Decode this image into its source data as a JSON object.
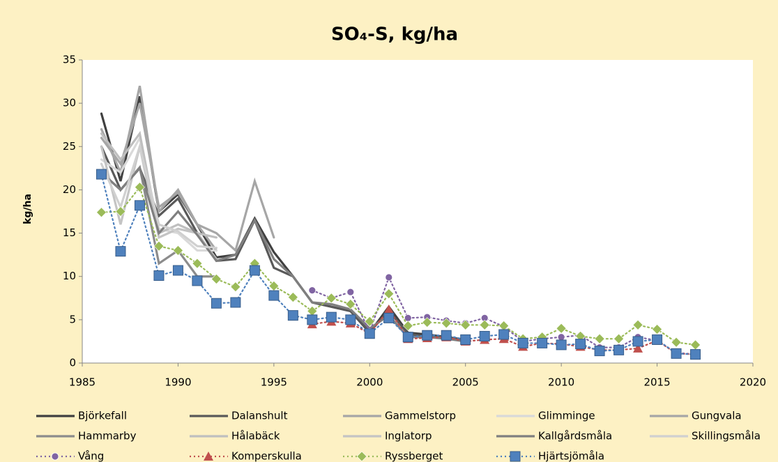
{
  "chart_data": {
    "type": "line",
    "title": "SO₄-S, kg/ha",
    "y_label": "kg/ha",
    "x": [
      1986,
      1987,
      1988,
      1989,
      1990,
      1991,
      1992,
      1993,
      1994,
      1995,
      1996,
      1997,
      1998,
      1999,
      2000,
      2001,
      2002,
      2003,
      2004,
      2005,
      2006,
      2007,
      2008,
      2009,
      2010,
      2011,
      2012,
      2013,
      2014,
      2015,
      2016,
      2017
    ],
    "xlim": [
      1985,
      2020
    ],
    "xticks": [
      1985,
      1990,
      1995,
      2000,
      2005,
      2010,
      2015,
      2020
    ],
    "ylim": [
      0,
      35
    ],
    "yticks": [
      0,
      5,
      10,
      15,
      20,
      25,
      30,
      35
    ],
    "series": [
      {
        "name": "Björkefall",
        "color": "#404040",
        "line_style": "solid",
        "values": [
          28.8,
          21,
          30.8,
          17.5,
          19.5,
          16,
          12.2,
          12.5,
          16.7,
          12.8,
          10,
          7,
          6.5,
          6,
          3.5,
          6.5,
          3.5,
          3.3,
          3,
          2.7,
          null,
          null,
          null,
          null,
          null,
          null,
          null,
          null,
          null,
          null,
          null,
          null
        ]
      },
      {
        "name": "Dalanshult",
        "color": "#595959",
        "line_style": "solid",
        "values": [
          25,
          20,
          22.5,
          17,
          19,
          15,
          11.8,
          12,
          16.5,
          11,
          10,
          7,
          6.5,
          6,
          3.6,
          6,
          3.4,
          3,
          3,
          2.6,
          null,
          null,
          null,
          null,
          null,
          null,
          null,
          null,
          null,
          null,
          null,
          null
        ]
      },
      {
        "name": "Gammelstorp",
        "color": "#a6a6a6",
        "line_style": "solid",
        "values": [
          27,
          22,
          32,
          17.5,
          20,
          16,
          13,
          null,
          null,
          null,
          null,
          null,
          null,
          null,
          null,
          null,
          null,
          null,
          null,
          null,
          null,
          null,
          null,
          null,
          null,
          null,
          null,
          null,
          null,
          null,
          null,
          null
        ]
      },
      {
        "name": "Glimminge",
        "color": "#d9d9d9",
        "line_style": "solid",
        "values": [
          23.5,
          22,
          26,
          15.5,
          15,
          13,
          13,
          null,
          null,
          null,
          null,
          null,
          null,
          null,
          null,
          null,
          null,
          null,
          null,
          null,
          null,
          null,
          null,
          null,
          null,
          null,
          null,
          null,
          null,
          null,
          null,
          null
        ]
      },
      {
        "name": "Gungvala",
        "color": "#a6a6a6",
        "line_style": "solid",
        "values": [
          26,
          23,
          30,
          18,
          19.7,
          16,
          15,
          13,
          21,
          14.5,
          null,
          null,
          null,
          null,
          null,
          null,
          null,
          null,
          null,
          null,
          null,
          null,
          null,
          null,
          null,
          null,
          null,
          null,
          null,
          null,
          null,
          null
        ]
      },
      {
        "name": "Hammarby",
        "color": "#8c8c8c",
        "line_style": "solid",
        "values": [
          22,
          20,
          22.6,
          11.5,
          13,
          10,
          10,
          null,
          null,
          null,
          null,
          null,
          null,
          null,
          null,
          null,
          null,
          null,
          null,
          null,
          null,
          null,
          null,
          null,
          null,
          null,
          null,
          null,
          null,
          null,
          null,
          null
        ]
      },
      {
        "name": "Hålabäck",
        "color": "#bfbfbf",
        "line_style": "solid",
        "values": [
          26.5,
          23.5,
          26.5,
          15,
          16,
          15,
          14.5,
          null,
          null,
          null,
          null,
          null,
          null,
          null,
          null,
          null,
          null,
          null,
          null,
          null,
          null,
          null,
          null,
          null,
          null,
          null,
          null,
          null,
          null,
          null,
          null,
          null
        ]
      },
      {
        "name": "Inglatorp",
        "color": "#c4c4c4",
        "line_style": "solid",
        "values": [
          25,
          16,
          25,
          14.5,
          15.5,
          15,
          12,
          null,
          null,
          null,
          null,
          null,
          null,
          null,
          null,
          null,
          null,
          null,
          null,
          null,
          null,
          null,
          null,
          null,
          null,
          null,
          null,
          null,
          null,
          null,
          null,
          null
        ]
      },
      {
        "name": "Kallgårdsmåla",
        "color": "#7f7f7f",
        "line_style": "solid",
        "values": [
          22,
          20,
          22.5,
          15,
          17.5,
          14.8,
          11.8,
          12.5,
          16.5,
          12,
          10,
          7,
          6.8,
          6.2,
          4,
          5.5,
          3,
          3,
          2.8,
          2.5,
          null,
          null,
          null,
          null,
          null,
          null,
          null,
          null,
          null,
          null,
          null,
          null
        ]
      },
      {
        "name": "Skillingsmåla",
        "color": "#d0d0d0",
        "line_style": "solid",
        "values": [
          23,
          18,
          25,
          16,
          15.2,
          13.5,
          13.3,
          null,
          null,
          null,
          null,
          null,
          null,
          null,
          null,
          null,
          null,
          null,
          null,
          null,
          null,
          null,
          null,
          null,
          null,
          null,
          null,
          null,
          null,
          null,
          null,
          null
        ]
      },
      {
        "name": "Vång",
        "color": "#8064a2",
        "line_style": "dotted",
        "marker": "circle",
        "values": [
          null,
          null,
          null,
          null,
          null,
          null,
          null,
          null,
          null,
          null,
          null,
          8.4,
          7.5,
          8.2,
          3.6,
          9.9,
          5.2,
          5.3,
          4.9,
          4.6,
          5.2,
          4.2,
          2.5,
          2.8,
          3.0,
          3.2,
          1.8,
          1.8,
          3.0,
          2.6,
          1.2,
          1.0
        ]
      },
      {
        "name": "Komperskulla",
        "color": "#c0504d",
        "line_style": "dotted",
        "marker": "triangle",
        "values": [
          null,
          null,
          null,
          null,
          null,
          null,
          null,
          null,
          null,
          null,
          null,
          4.5,
          4.8,
          4.6,
          3.4,
          6.2,
          2.8,
          2.9,
          3.0,
          2.5,
          2.7,
          2.8,
          1.9,
          2.3,
          2.2,
          1.9,
          1.5,
          1.5,
          1.7,
          2.6,
          1.1,
          1.0
        ]
      },
      {
        "name": "Ryssberget",
        "color": "#9bbb59",
        "line_style": "dotted",
        "marker": "diamond",
        "values": [
          17.4,
          17.5,
          20.3,
          13.5,
          13.0,
          11.5,
          9.7,
          8.8,
          11.5,
          8.9,
          7.6,
          6.0,
          7.5,
          6.8,
          4.8,
          8.0,
          4.3,
          4.7,
          4.6,
          4.4,
          4.4,
          4.3,
          2.8,
          3.0,
          4.0,
          3.1,
          2.8,
          2.8,
          4.4,
          3.9,
          2.4,
          2.1
        ]
      },
      {
        "name": "Hjärtsjömåla",
        "color": "#4f81bd",
        "line_style": "dotted",
        "marker": "square",
        "values": [
          21.8,
          12.9,
          18.2,
          10.1,
          10.7,
          9.5,
          6.9,
          7.0,
          10.7,
          7.8,
          5.5,
          5.0,
          5.3,
          5.0,
          3.4,
          5.2,
          3.0,
          3.2,
          3.2,
          2.7,
          3.1,
          3.3,
          2.3,
          2.3,
          2.1,
          2.2,
          1.4,
          1.5,
          2.5,
          2.7,
          1.1,
          1.0
        ]
      }
    ]
  }
}
